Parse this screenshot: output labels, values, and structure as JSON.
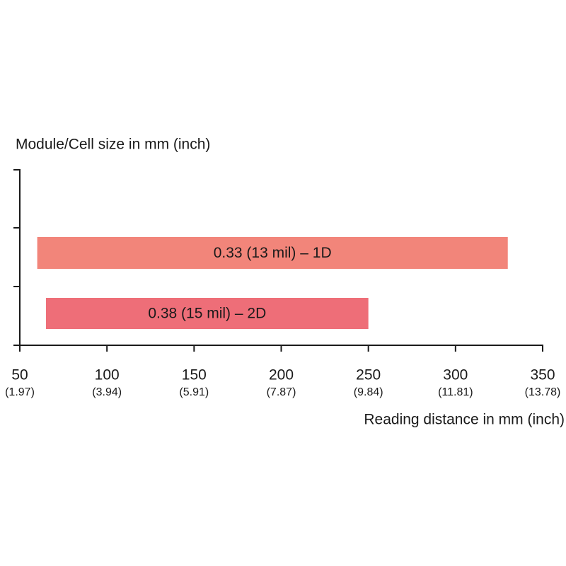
{
  "chart_data": {
    "type": "range-bar",
    "title": "Module/Cell size in mm (inch)",
    "x_label": "Reading distance in mm (inch)",
    "categories": [
      "0.33 (13 mil) – 1D",
      "0.38 (15 mil) – 2D"
    ],
    "starts": [
      60,
      65
    ],
    "ends": [
      330,
      250
    ],
    "colors": [
      "#f2857a",
      "#ee6e78"
    ],
    "xlim": [
      50,
      350
    ],
    "xticks": [
      50,
      100,
      150,
      200,
      250,
      300,
      350
    ],
    "xtick_inch_labels": [
      "(1.97)",
      "(3.94)",
      "(5.91)",
      "(7.87)",
      "(9.84)",
      "(11.81)",
      "(13.78)"
    ]
  }
}
